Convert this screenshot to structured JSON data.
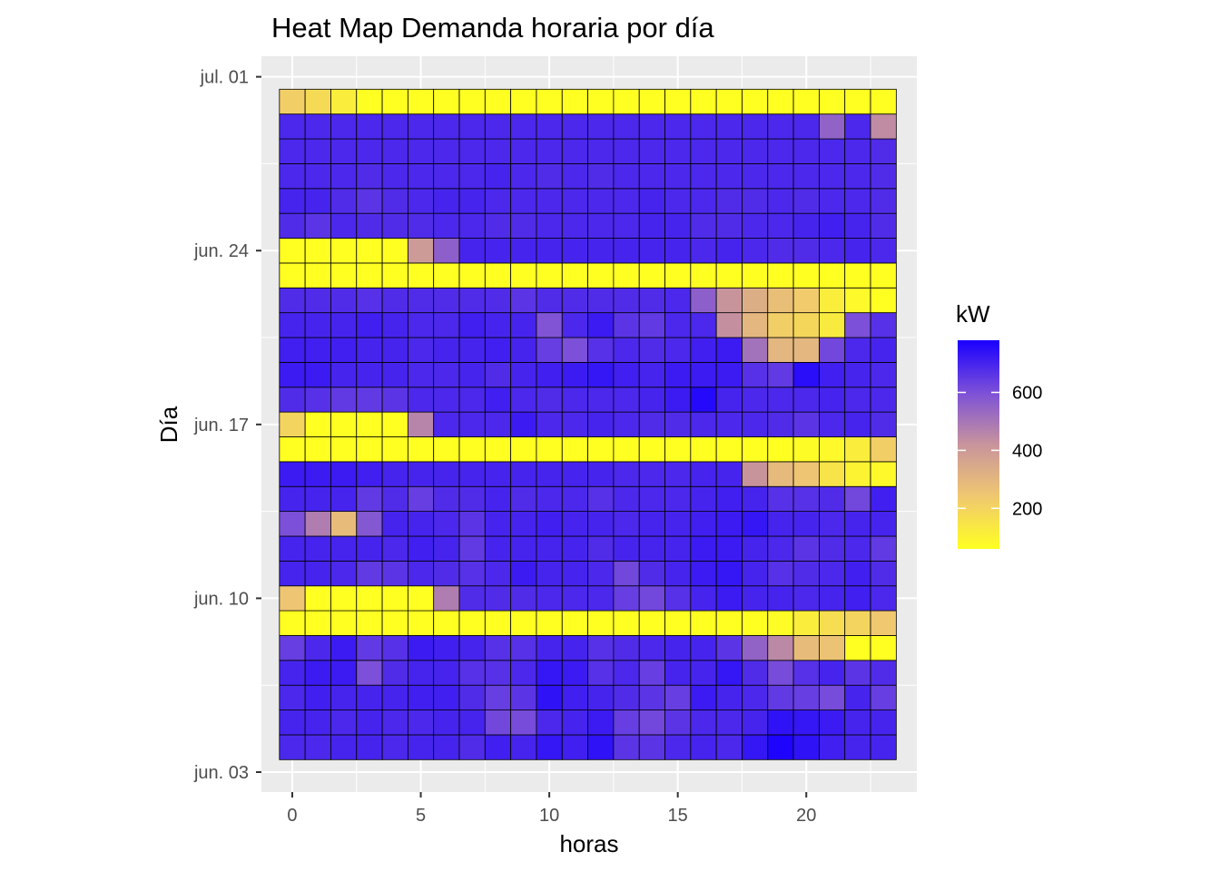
{
  "chart_data": {
    "type": "heatmap",
    "title": "Heat Map Demanda horaria por día",
    "xlabel": "horas",
    "ylabel": "Día",
    "x_values": [
      0,
      1,
      2,
      3,
      4,
      5,
      6,
      7,
      8,
      9,
      10,
      11,
      12,
      13,
      14,
      15,
      16,
      17,
      18,
      19,
      20,
      21,
      22,
      23
    ],
    "x_ticks": [
      0,
      5,
      10,
      15,
      20
    ],
    "xlim": [
      -1.2,
      24.3
    ],
    "y_dates": [
      "jun. 04",
      "jun. 05",
      "jun. 06",
      "jun. 07",
      "jun. 08",
      "jun. 09",
      "jun. 10",
      "jun. 11",
      "jun. 12",
      "jun. 13",
      "jun. 14",
      "jun. 15",
      "jun. 16",
      "jun. 17",
      "jun. 18",
      "jun. 19",
      "jun. 20",
      "jun. 21",
      "jun. 22",
      "jun. 23",
      "jun. 24",
      "jun. 25",
      "jun. 26",
      "jun. 27",
      "jun. 28",
      "jun. 29",
      "jun. 30"
    ],
    "y_ticks": [
      "jun. 03",
      "jun. 10",
      "jun. 17",
      "jun. 24",
      "jul. 01"
    ],
    "legend": {
      "title": "kW",
      "breaks": [
        200,
        400,
        600
      ],
      "range": [
        60,
        780
      ],
      "low_color": "#ffff22",
      "high_color": "#1a00ff",
      "placement": "right"
    },
    "grid": true,
    "panel_color": "#ebebeb",
    "rows_kw": [
      [
        690,
        690,
        700,
        700,
        690,
        700,
        700,
        680,
        710,
        700,
        730,
        710,
        740,
        660,
        660,
        690,
        700,
        690,
        730,
        770,
        740,
        710,
        700,
        700
      ],
      [
        700,
        700,
        690,
        700,
        690,
        690,
        700,
        700,
        620,
        610,
        690,
        700,
        720,
        640,
        620,
        660,
        690,
        690,
        700,
        740,
        730,
        720,
        700,
        700
      ],
      [
        690,
        710,
        700,
        700,
        700,
        710,
        710,
        680,
        640,
        660,
        740,
        710,
        700,
        680,
        660,
        640,
        720,
        700,
        690,
        650,
        640,
        610,
        700,
        640
      ],
      [
        700,
        720,
        720,
        600,
        680,
        700,
        700,
        670,
        670,
        690,
        730,
        720,
        670,
        690,
        640,
        700,
        700,
        730,
        680,
        610,
        670,
        700,
        660,
        680
      ],
      [
        640,
        690,
        720,
        650,
        670,
        720,
        710,
        700,
        670,
        670,
        700,
        700,
        670,
        680,
        690,
        700,
        700,
        660,
        550,
        450,
        280,
        260,
        60,
        60
      ],
      [
        60,
        60,
        60,
        60,
        60,
        60,
        60,
        60,
        60,
        60,
        60,
        60,
        60,
        60,
        60,
        60,
        60,
        60,
        60,
        70,
        120,
        170,
        200,
        240
      ],
      [
        250,
        60,
        60,
        60,
        60,
        60,
        480,
        680,
        680,
        680,
        690,
        690,
        690,
        640,
        620,
        670,
        700,
        720,
        700,
        700,
        690,
        700,
        710,
        690
      ],
      [
        700,
        700,
        690,
        650,
        660,
        690,
        680,
        670,
        690,
        720,
        700,
        700,
        690,
        620,
        680,
        700,
        720,
        730,
        700,
        670,
        680,
        690,
        710,
        680
      ],
      [
        700,
        700,
        700,
        700,
        690,
        710,
        700,
        650,
        700,
        700,
        700,
        700,
        680,
        700,
        700,
        700,
        720,
        720,
        700,
        690,
        660,
        680,
        690,
        650
      ],
      [
        600,
        480,
        280,
        580,
        700,
        700,
        690,
        660,
        700,
        700,
        710,
        700,
        700,
        690,
        700,
        700,
        710,
        720,
        730,
        700,
        700,
        690,
        700,
        700
      ],
      [
        700,
        700,
        700,
        650,
        680,
        640,
        680,
        680,
        700,
        680,
        690,
        690,
        670,
        690,
        690,
        690,
        700,
        710,
        700,
        670,
        670,
        680,
        620,
        710
      ],
      [
        720,
        720,
        720,
        710,
        700,
        700,
        700,
        700,
        700,
        700,
        700,
        700,
        700,
        690,
        690,
        690,
        700,
        700,
        420,
        290,
        250,
        150,
        100,
        80
      ],
      [
        60,
        60,
        60,
        60,
        60,
        60,
        60,
        60,
        60,
        60,
        60,
        60,
        60,
        60,
        60,
        60,
        60,
        60,
        60,
        60,
        70,
        80,
        120,
        220
      ],
      [
        200,
        60,
        60,
        60,
        60,
        460,
        690,
        690,
        690,
        720,
        690,
        690,
        700,
        690,
        680,
        680,
        690,
        690,
        690,
        680,
        660,
        690,
        700,
        680
      ],
      [
        680,
        670,
        650,
        650,
        660,
        690,
        690,
        690,
        710,
        690,
        680,
        690,
        690,
        690,
        700,
        720,
        760,
        700,
        690,
        690,
        690,
        700,
        690,
        690
      ],
      [
        720,
        720,
        700,
        700,
        700,
        690,
        690,
        700,
        680,
        700,
        710,
        720,
        730,
        710,
        700,
        720,
        720,
        720,
        670,
        650,
        750,
        710,
        700,
        690
      ],
      [
        710,
        710,
        710,
        700,
        700,
        690,
        700,
        700,
        710,
        700,
        640,
        600,
        670,
        690,
        680,
        690,
        710,
        720,
        510,
        300,
        300,
        620,
        690,
        700
      ],
      [
        700,
        700,
        700,
        710,
        700,
        690,
        690,
        710,
        700,
        700,
        590,
        690,
        720,
        660,
        650,
        690,
        690,
        430,
        300,
        220,
        190,
        130,
        600,
        670
      ],
      [
        680,
        680,
        680,
        670,
        680,
        680,
        680,
        680,
        680,
        660,
        680,
        680,
        680,
        680,
        680,
        690,
        560,
        420,
        330,
        270,
        230,
        120,
        80,
        60
      ],
      [
        60,
        60,
        60,
        60,
        60,
        60,
        60,
        60,
        60,
        60,
        60,
        60,
        60,
        60,
        60,
        60,
        60,
        60,
        60,
        60,
        60,
        60,
        60,
        60
      ],
      [
        60,
        60,
        60,
        60,
        60,
        400,
        560,
        700,
        700,
        700,
        700,
        700,
        700,
        700,
        700,
        700,
        690,
        700,
        690,
        680,
        680,
        690,
        700,
        690
      ],
      [
        680,
        660,
        690,
        680,
        680,
        680,
        690,
        690,
        680,
        680,
        690,
        690,
        690,
        690,
        700,
        700,
        680,
        680,
        690,
        690,
        700,
        710,
        700,
        680
      ],
      [
        700,
        700,
        680,
        660,
        680,
        690,
        700,
        700,
        690,
        690,
        690,
        690,
        690,
        690,
        700,
        690,
        690,
        680,
        680,
        690,
        680,
        690,
        690,
        680
      ],
      [
        690,
        690,
        690,
        680,
        690,
        690,
        690,
        690,
        700,
        690,
        680,
        690,
        680,
        690,
        690,
        690,
        690,
        690,
        690,
        690,
        690,
        690,
        690,
        680
      ],
      [
        690,
        690,
        690,
        690,
        690,
        690,
        690,
        690,
        690,
        690,
        690,
        690,
        690,
        690,
        690,
        690,
        690,
        690,
        690,
        690,
        690,
        690,
        690,
        680
      ],
      [
        690,
        690,
        690,
        690,
        690,
        690,
        690,
        690,
        690,
        690,
        690,
        690,
        690,
        690,
        690,
        690,
        690,
        690,
        690,
        690,
        690,
        550,
        690,
        440
      ],
      [
        220,
        180,
        120,
        60,
        60,
        60,
        60,
        60,
        60,
        60,
        60,
        60,
        60,
        60,
        60,
        60,
        60,
        60,
        60,
        60,
        60,
        60,
        60,
        60
      ]
    ]
  }
}
